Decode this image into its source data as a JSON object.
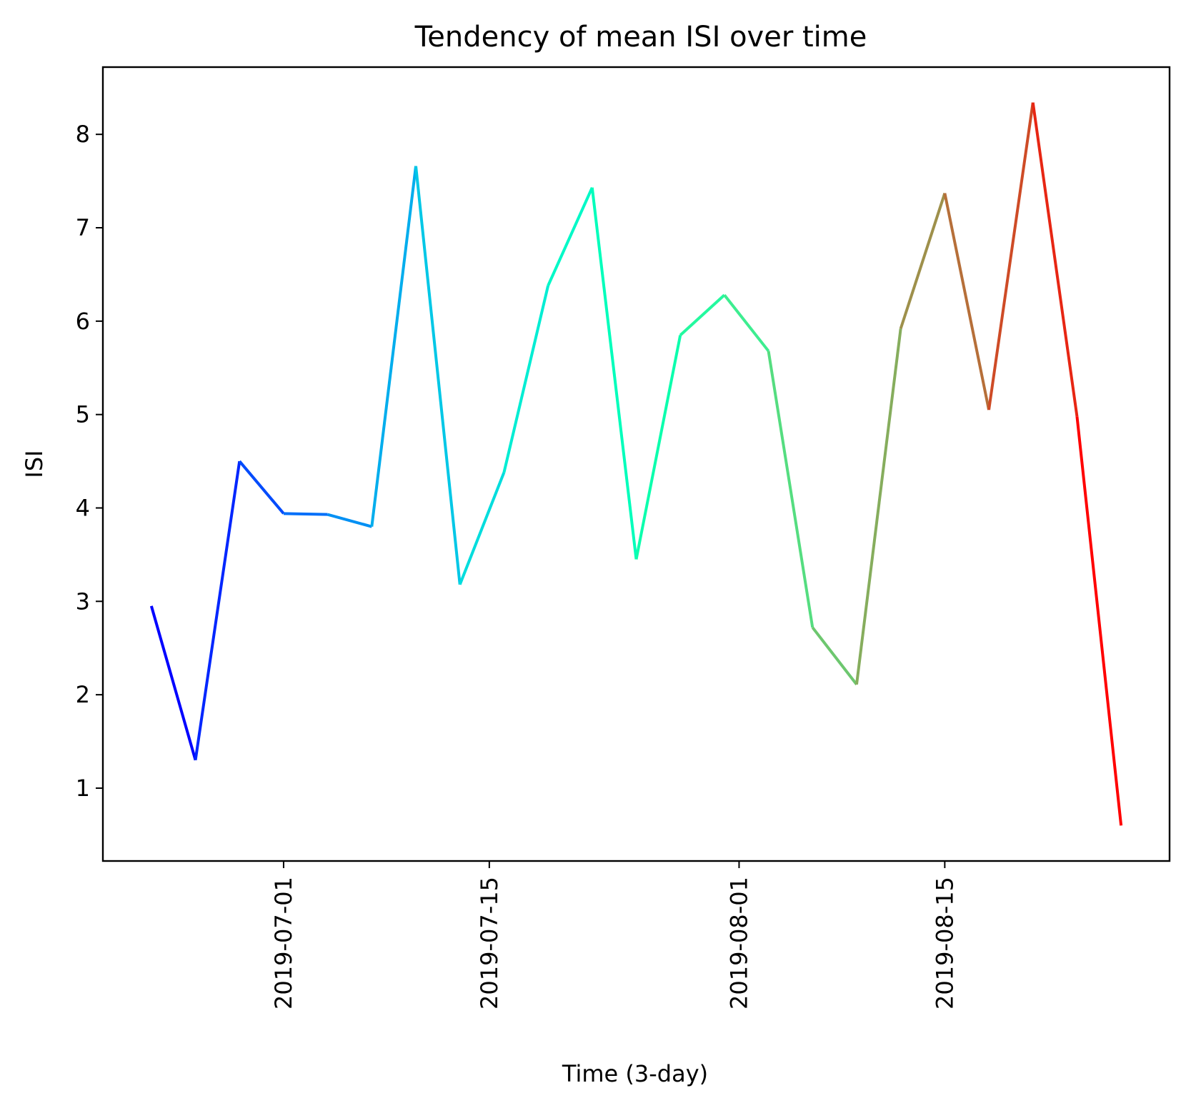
{
  "chart_data": {
    "type": "line",
    "title": "Tendency of mean ISI over time",
    "xlabel": "Time (3-day)",
    "ylabel": "ISI",
    "x": [
      "2019-06-22",
      "2019-06-25",
      "2019-06-28",
      "2019-07-01",
      "2019-07-04",
      "2019-07-07",
      "2019-07-10",
      "2019-07-13",
      "2019-07-16",
      "2019-07-19",
      "2019-07-22",
      "2019-07-25",
      "2019-07-28",
      "2019-07-31",
      "2019-08-03",
      "2019-08-06",
      "2019-08-09",
      "2019-08-12",
      "2019-08-15",
      "2019-08-18",
      "2019-08-21",
      "2019-08-24",
      "2019-08-27"
    ],
    "series": [
      {
        "values": [
          2.95,
          1.3,
          4.5,
          3.94,
          3.93,
          3.8,
          7.66,
          3.18,
          4.38,
          6.38,
          7.43,
          3.45,
          5.85,
          6.28,
          5.68,
          2.72,
          2.11,
          5.92,
          7.37,
          5.05,
          8.34,
          4.98,
          0.6
        ],
        "colormap": "rainbow"
      }
    ],
    "xticks": [
      "2019-07-01",
      "2019-07-15",
      "2019-08-01",
      "2019-08-15"
    ],
    "yticks": [
      "1",
      "2",
      "3",
      "4",
      "5",
      "6",
      "7",
      "8"
    ],
    "ylim": [
      0.22,
      8.72
    ],
    "xlim": [
      "2019-06-18.7",
      "2019-08-30.3"
    ],
    "grid": false,
    "legend": "none",
    "colors": {
      "axis": "#000000",
      "background": "#ffffff"
    }
  }
}
